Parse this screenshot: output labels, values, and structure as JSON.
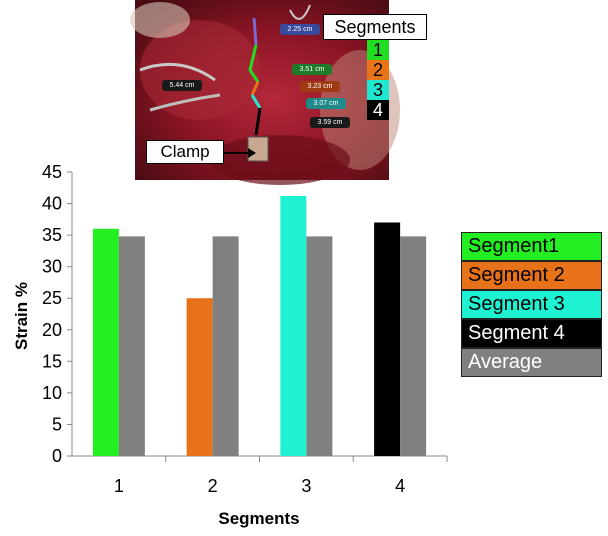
{
  "photo": {
    "segments_title": "Segments",
    "segment_numbers": [
      "1",
      "2",
      "3",
      "4"
    ],
    "segment_colors": [
      "#22dd22",
      "#e87318",
      "#20e8d0",
      "#000000"
    ],
    "clamp_label": "Clamp",
    "measurements": [
      "2.25 cm",
      "5.44 cm",
      "3.51 cm",
      "3.23 cm",
      "3.07 cm",
      "3.59 cm"
    ],
    "measurement_colors": [
      "#3a4a9a",
      "#1a1a1a",
      "#1f7a2a",
      "#a03a12",
      "#1e8a8a",
      "#1a1a1a"
    ]
  },
  "chart_data": {
    "type": "bar",
    "categories": [
      "1",
      "2",
      "3",
      "4"
    ],
    "series": [
      {
        "name": "Segment1",
        "values": [
          36,
          null,
          null,
          null
        ],
        "color": "#22ee22"
      },
      {
        "name": "Segment 2",
        "values": [
          null,
          25,
          null,
          null
        ],
        "color": "#e8721a"
      },
      {
        "name": "Segment 3",
        "values": [
          null,
          null,
          41.2,
          null
        ],
        "color": "#1ff2d2"
      },
      {
        "name": "Segment 4",
        "values": [
          null,
          null,
          null,
          37
        ],
        "color": "#000000"
      },
      {
        "name": "Average",
        "values": [
          34.8,
          34.8,
          34.8,
          34.8
        ],
        "color": "#808080"
      }
    ],
    "ylabel": "Strain %",
    "xlabel": "Segments",
    "ylim": [
      0,
      45
    ],
    "yticks": [
      "0",
      "5",
      "10",
      "15",
      "20",
      "25",
      "30",
      "35",
      "40",
      "45"
    ],
    "grid": false,
    "legend_position": "right"
  }
}
